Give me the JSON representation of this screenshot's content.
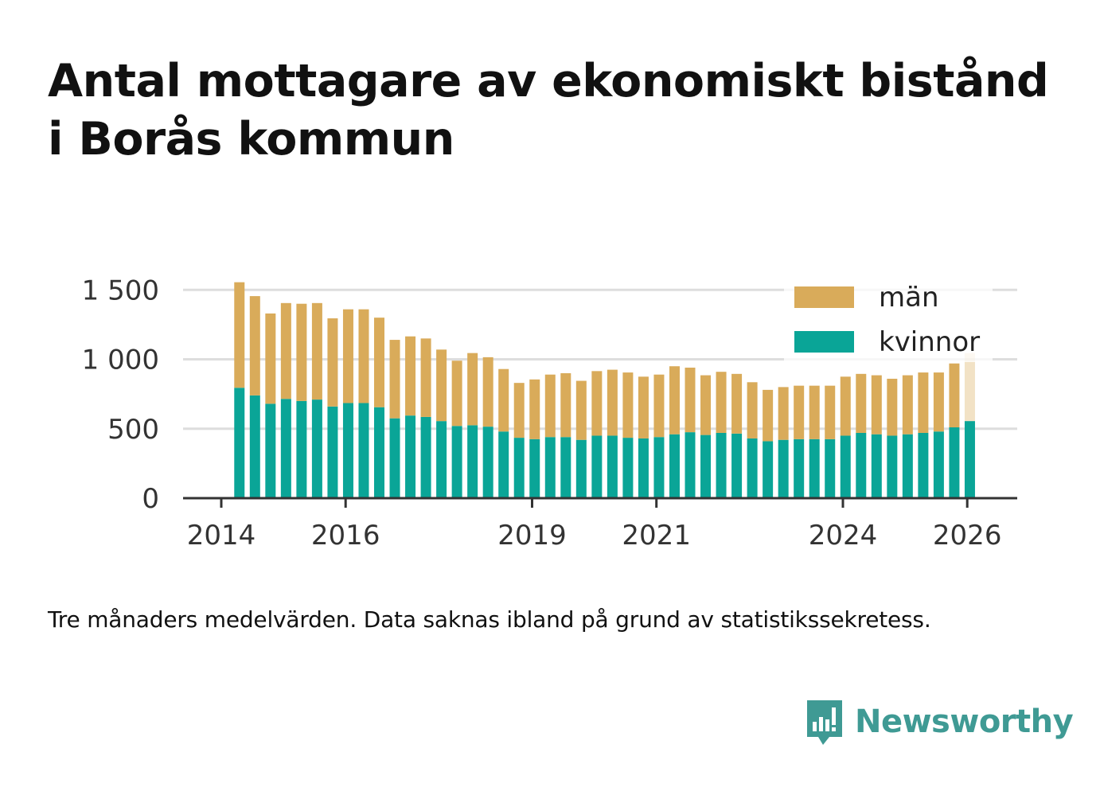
{
  "title_lines": [
    "Antal mottagare av ekonomiskt bistånd",
    "i Borås kommun"
  ],
  "caption": "Tre månaders medelvärden. Data saknas ibland på grund av statistikssekretess.",
  "brand": {
    "name": "Newsworthy",
    "icon": "newsworthy-logo-icon",
    "color": "#3f9a94"
  },
  "colors": {
    "kvinnor": "#0aa597",
    "man": "#d9ab5a",
    "grid": "#dddddd",
    "axis": "#333333"
  },
  "chart_data": {
    "type": "bar",
    "stacked": true,
    "x": [
      "2014-04",
      "2014-07",
      "2014-10",
      "2015-01",
      "2015-04",
      "2015-07",
      "2015-10",
      "2016-01",
      "2016-04",
      "2016-07",
      "2016-10",
      "2017-01",
      "2017-04",
      "2017-07",
      "2017-10",
      "2018-01",
      "2018-04",
      "2018-07",
      "2018-10",
      "2019-01",
      "2019-04",
      "2019-07",
      "2019-10",
      "2020-01",
      "2020-04",
      "2020-07",
      "2020-10",
      "2021-01",
      "2021-04",
      "2021-07",
      "2021-10",
      "2022-01",
      "2022-04",
      "2022-07",
      "2022-10",
      "2023-01",
      "2023-04",
      "2023-07",
      "2023-10",
      "2024-01",
      "2024-04",
      "2024-07",
      "2024-10",
      "2025-01",
      "2025-04",
      "2025-07",
      "2025-10",
      "2026-01"
    ],
    "series": [
      {
        "name": "kvinnor",
        "values": [
          795,
          740,
          680,
          715,
          700,
          710,
          660,
          685,
          685,
          655,
          575,
          595,
          585,
          555,
          520,
          525,
          515,
          480,
          435,
          425,
          440,
          440,
          420,
          450,
          450,
          435,
          430,
          440,
          460,
          475,
          455,
          470,
          465,
          430,
          410,
          420,
          425,
          425,
          425,
          450,
          470,
          460,
          450,
          460,
          470,
          480,
          510,
          555
        ]
      },
      {
        "name": "män",
        "values": [
          760,
          715,
          650,
          690,
          700,
          695,
          635,
          675,
          675,
          645,
          565,
          570,
          565,
          515,
          470,
          520,
          500,
          450,
          395,
          430,
          450,
          460,
          425,
          465,
          475,
          470,
          445,
          450,
          490,
          465,
          430,
          440,
          430,
          405,
          370,
          380,
          385,
          385,
          385,
          425,
          425,
          425,
          410,
          425,
          435,
          425,
          460,
          490
        ]
      }
    ],
    "faded_last": true,
    "y_ticks": [
      0,
      500,
      1000,
      1500
    ],
    "y_tick_labels": [
      "0",
      "500",
      "1 000",
      "1 500"
    ],
    "x_ticks": [
      "2014",
      "2016",
      "2019",
      "2021",
      "2024",
      "2026"
    ],
    "ylim": [
      0,
      1600
    ],
    "grid": true,
    "legend": {
      "placement": "top-right",
      "entries": [
        "män",
        "kvinnor"
      ]
    }
  }
}
